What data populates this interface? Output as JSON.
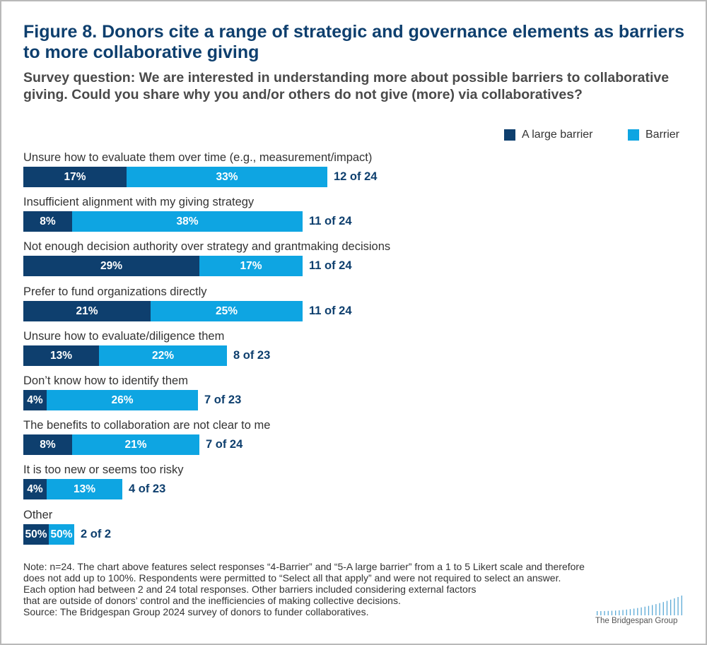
{
  "colors": {
    "large": "#0e3f6e",
    "barrier": "#0ea5e2",
    "total": "#0e3f6e"
  },
  "chart_data": {
    "type": "bar",
    "orientation": "horizontal",
    "stacked": true,
    "title": "Figure 8. Donors cite a range of strategic and governance elements as barriers to more collaborative giving",
    "subtitle": "Survey question: We are interested in understanding more about possible barriers to collaborative giving. Could you share why you and/or others do not give (more) via collaboratives?",
    "legend": [
      {
        "name": "A large barrier",
        "color": "#0e3f6e"
      },
      {
        "name": "Barrier",
        "color": "#0ea5e2"
      }
    ],
    "categories": [
      "Unsure how to evaluate them over time (e.g., measurement/impact)",
      "Insufficient alignment with my giving strategy",
      "Not enough decision authority over strategy and grantmaking decisions",
      "Prefer to fund organizations directly",
      "Unsure how to evaluate/diligence them",
      "Don’t know how to identify them",
      "The benefits to collaboration are not clear to me",
      "It is too new or seems too risky",
      "Other"
    ],
    "series": [
      {
        "name": "A large barrier",
        "values": [
          17,
          8,
          29,
          21,
          13,
          4,
          8,
          4,
          50
        ],
        "labels": [
          "17%",
          "8%",
          "29%",
          "21%",
          "13%",
          "4%",
          "8%",
          "4%",
          "50%"
        ]
      },
      {
        "name": "Barrier",
        "values": [
          33,
          38,
          17,
          25,
          22,
          26,
          21,
          13,
          50
        ],
        "labels": [
          "33%",
          "38%",
          "17%",
          "25%",
          "22%",
          "26%",
          "21%",
          "13%",
          "50%"
        ]
      }
    ],
    "totals": [
      "12 of 24",
      "11 of 24",
      "11 of 24",
      "11 of 24",
      "8 of 23",
      "7 of 23",
      "7 of 24",
      "4 of 23",
      "2 of 2"
    ],
    "bar_units_note": "bar lengths represent respondent counts (large + barrier) of each total"
  },
  "note_lines": [
    "Note: n=24. The chart above features select responses “4-Barrier” and “5-A large barrier” from a 1 to 5 Likert scale and therefore",
    "does not add up to 100%. Respondents were permitted to “Select all that apply” and were not required to select an answer.",
    "Each option had between 2 and 24 total responses. Other barriers included considering external factors",
    "that are outside of donors’ control and the inefficiencies of making collective decisions.",
    "Source: The Bridgespan Group 2024 survey of donors to funder collaboratives."
  ],
  "logo": {
    "text": "The Bridgespan Group"
  }
}
